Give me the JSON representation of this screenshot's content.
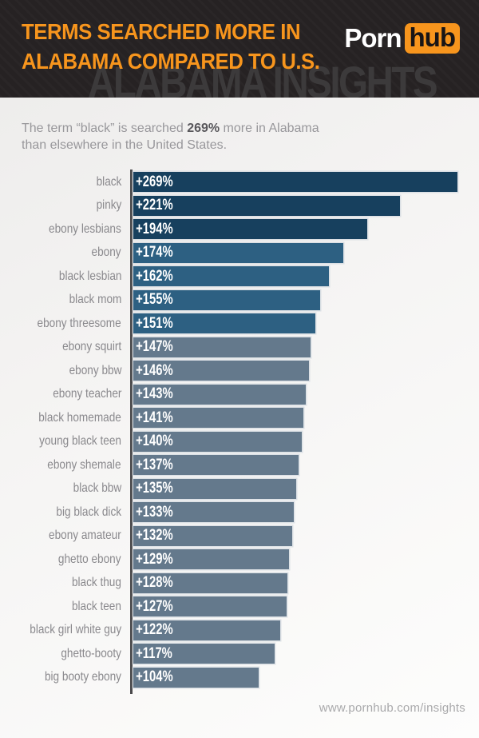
{
  "header": {
    "title_line1": "TERMS SEARCHED MORE IN",
    "title_line2": "ALABAMA COMPARED TO U.S.",
    "watermark": "ALABAMA INSIGHTS",
    "logo": {
      "part1": "Porn",
      "part2": "hub"
    }
  },
  "subtitle": {
    "prefix": "The term “black” is searched ",
    "highlight": "269%",
    "middle": " more in Alabama",
    "line2": "than elsewhere in the United States."
  },
  "footer": {
    "url": "www.pornhub.com/insights"
  },
  "colors": {
    "header_bg": "#262223",
    "accent_orange": "#F7951D",
    "watermark_gray": "#3c3a3b",
    "subtitle_gray": "#98979b",
    "subtitle_bold_gray": "#58575b",
    "term_label_gray": "#8a898d",
    "axis_gray": "#4a494b",
    "footer_gray": "#a9a9ab",
    "bar_dark": "#17405e",
    "bar_medium": "#2d6082",
    "bar_light": "#64798c"
  },
  "chart_data": {
    "type": "bar",
    "orientation": "horizontal",
    "title": "TERMS SEARCHED MORE IN ALABAMA COMPARED TO U.S.",
    "xlabel": "",
    "ylabel": "",
    "xlim": [
      0,
      287
    ],
    "grid": false,
    "legend": false,
    "value_prefix": "+",
    "value_suffix": "%",
    "categories": [
      "black",
      "pinky",
      "ebony lesbians",
      "ebony",
      "black lesbian",
      "black mom",
      "ebony threesome",
      "ebony squirt",
      "ebony bbw",
      "ebony teacher",
      "black homemade",
      "young black teen",
      "ebony shemale",
      "black bbw",
      "big black dick",
      "ebony amateur",
      "ghetto ebony",
      "black thug",
      "black teen",
      "black girl white guy",
      "ghetto-booty",
      "big booty ebony"
    ],
    "values": [
      269,
      221,
      194,
      174,
      162,
      155,
      151,
      147,
      146,
      143,
      141,
      140,
      137,
      135,
      133,
      132,
      129,
      128,
      127,
      122,
      117,
      104
    ],
    "value_labels": [
      "+269%",
      "+221%",
      "+194%",
      "+174%",
      "+162%",
      "+155%",
      "+151%",
      "+147%",
      "+146%",
      "+143%",
      "+141%",
      "+140%",
      "+137%",
      "+135%",
      "+133%",
      "+132%",
      "+129%",
      "+128%",
      "+127%",
      "+122%",
      "+117%",
      "+104%"
    ],
    "bar_colors": [
      "#17405e",
      "#17405e",
      "#17405e",
      "#2d6082",
      "#2d6082",
      "#2d6082",
      "#2d6082",
      "#64798c",
      "#64798c",
      "#64798c",
      "#64798c",
      "#64798c",
      "#64798c",
      "#64798c",
      "#64798c",
      "#64798c",
      "#64798c",
      "#64798c",
      "#64798c",
      "#64798c",
      "#64798c",
      "#64798c"
    ]
  }
}
